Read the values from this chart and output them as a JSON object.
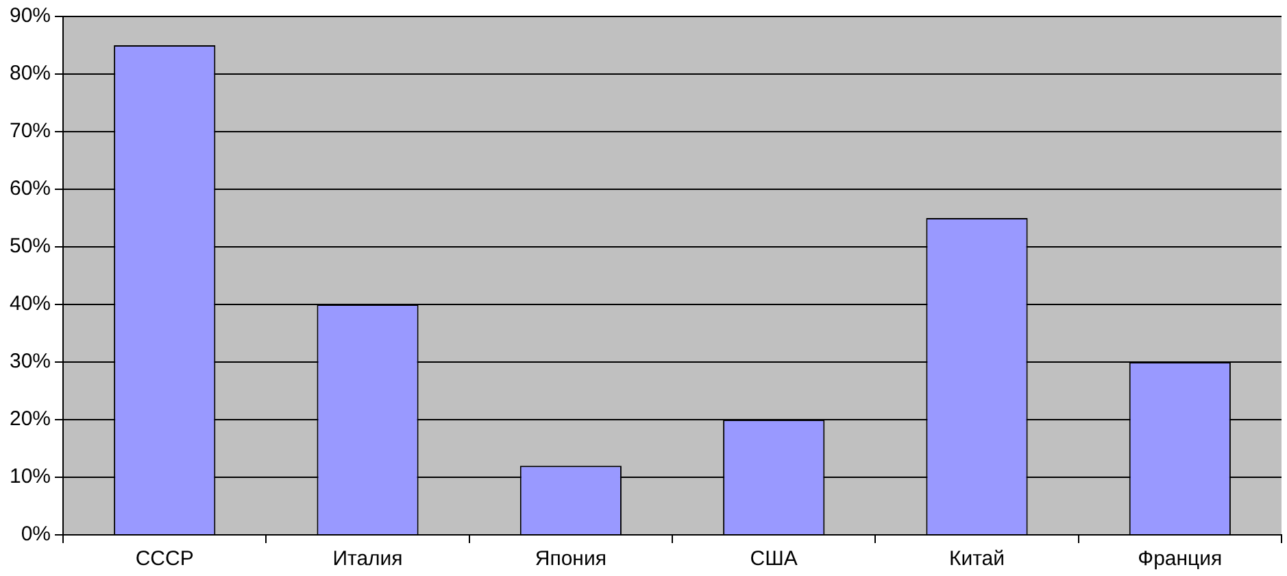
{
  "chart_data": {
    "type": "bar",
    "categories": [
      "СССР",
      "Италия",
      "Япония",
      "США",
      "Китай",
      "Франция"
    ],
    "values": [
      85,
      40,
      12,
      20,
      55,
      30
    ],
    "color": "#9999ff",
    "ylim": [
      0,
      90
    ],
    "yticks": [
      {
        "value": 0,
        "label": "0%"
      },
      {
        "value": 10,
        "label": "10%"
      },
      {
        "value": 20,
        "label": "20%"
      },
      {
        "value": 30,
        "label": "30%"
      },
      {
        "value": 40,
        "label": "40%"
      },
      {
        "value": 50,
        "label": "50%"
      },
      {
        "value": 60,
        "label": "60%"
      },
      {
        "value": 70,
        "label": "70%"
      },
      {
        "value": 80,
        "label": "80%"
      },
      {
        "value": 90,
        "label": "90%"
      }
    ],
    "grid": "y",
    "legend": false
  }
}
